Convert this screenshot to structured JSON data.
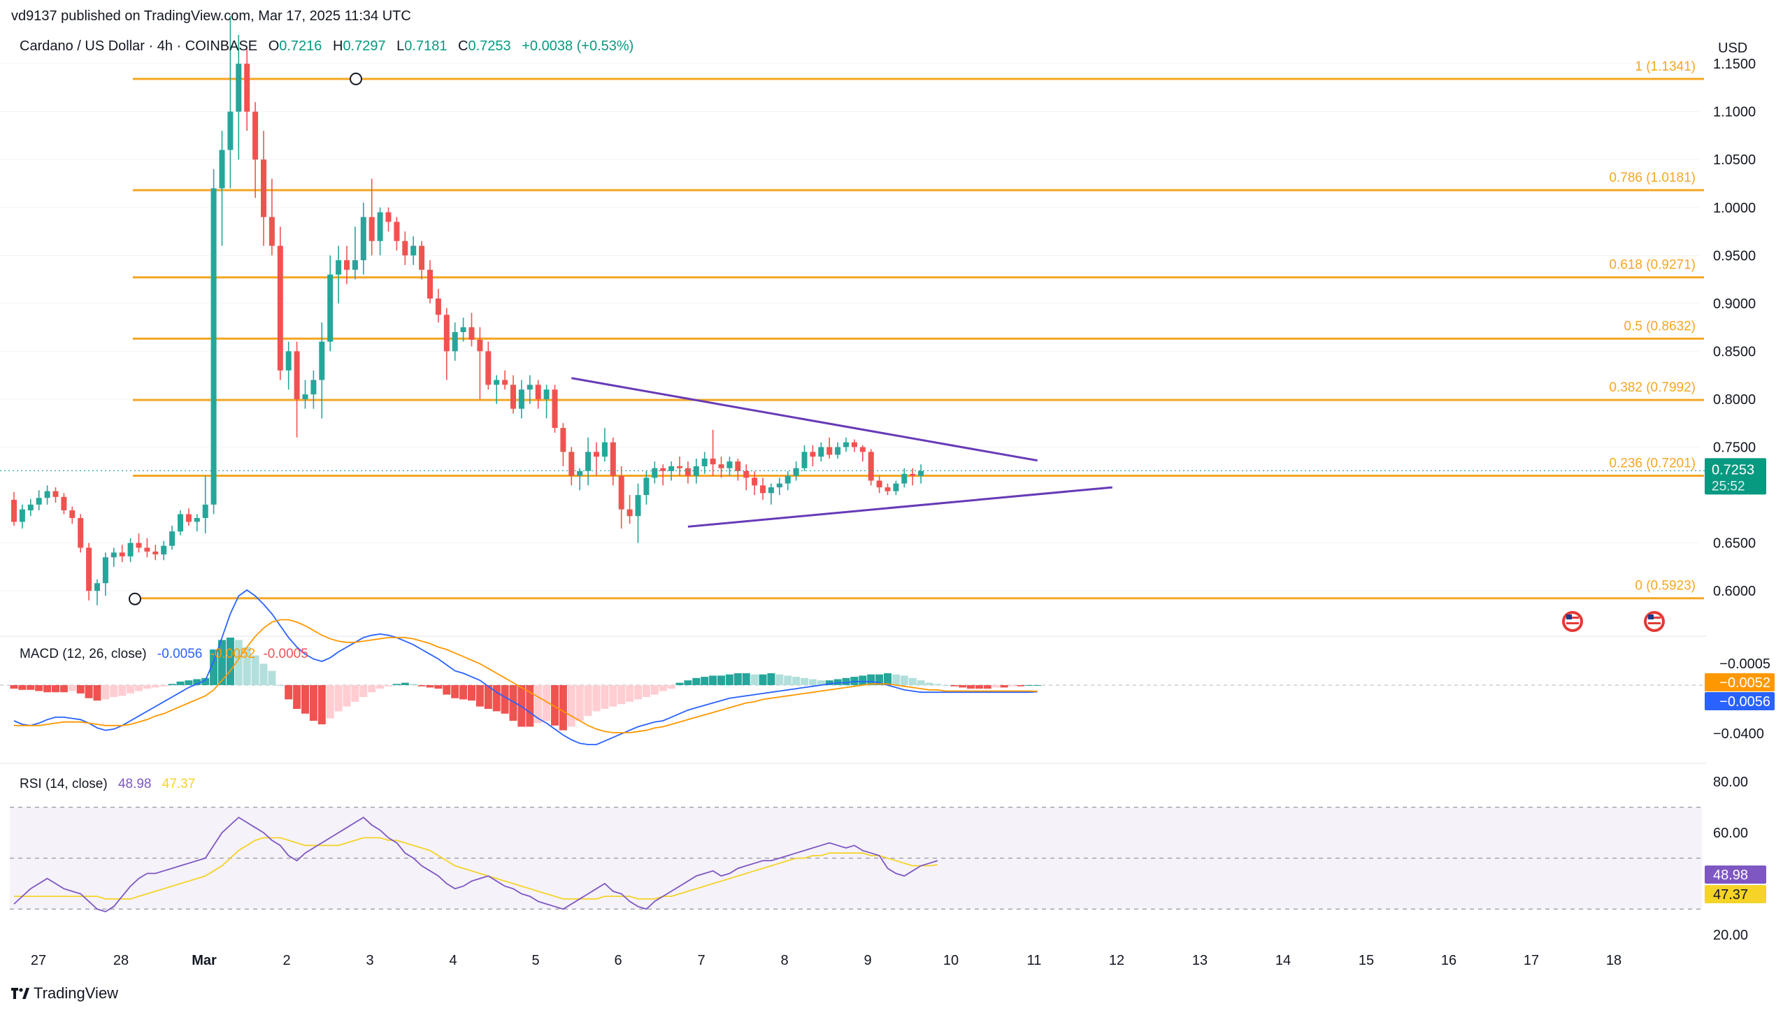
{
  "header": {
    "published": "vd9137 published on TradingView.com, Mar 17, 2025 11:34 UTC"
  },
  "legend": {
    "symbol": "Cardano / US Dollar · 4h · COINBASE",
    "o_label": "O",
    "o": "0.7216",
    "h_label": "H",
    "h": "0.7297",
    "l_label": "L",
    "l": "0.7181",
    "c_label": "C",
    "c": "0.7253",
    "change": "+0.0038 (+0.53%)"
  },
  "currency": "USD",
  "branding": "TradingView",
  "colors": {
    "up": "#26a69a",
    "down": "#ef5350",
    "fib": "#f5a623",
    "trend": "#673ab7",
    "macd": "#2962ff",
    "signal": "#ff9800",
    "rsi": "#7e57c2",
    "rsi_ma": "#f5d327",
    "hist_up": "#26a69a",
    "hist_up_weak": "#b2dfdb",
    "hist_dn": "#ef5350",
    "hist_dn_weak": "#ffcdd2"
  },
  "icons": {
    "brand": "tradingview-logo-icon",
    "events": "us-flag-event-icon"
  },
  "price_label": {
    "value": "0.7253",
    "countdown": "25:52"
  },
  "macd": {
    "title": "MACD (12, 26, close)",
    "val_macd": "-0.0056",
    "val_signal": "-0.0052",
    "val_hist": "-0.0005",
    "label_hist": "−0.0005",
    "label_signal": "−0.0052",
    "label_macd": "−0.0056",
    "ticks": [
      "−0.0400"
    ]
  },
  "rsi": {
    "title": "RSI (14, close)",
    "value": "48.98",
    "ma_value": "47.37",
    "ticks": [
      "80.00",
      "60.00",
      "20.00"
    ],
    "bands": [
      70,
      50,
      30
    ]
  },
  "chart_data": {
    "type": "candlestick",
    "title": "Cardano / US Dollar · 4h · COINBASE",
    "ylabel": "USD",
    "ylim": [
      0.56,
      1.18
    ],
    "y_ticks": [
      "1.1500",
      "1.1000",
      "1.0500",
      "1.0000",
      "0.9500",
      "0.9000",
      "0.8500",
      "0.8000",
      "0.7500",
      "0.6500",
      "0.6000"
    ],
    "x_ticks": [
      "27",
      "28",
      "Mar",
      "2",
      "3",
      "4",
      "5",
      "6",
      "7",
      "8",
      "9",
      "10",
      "11",
      "12",
      "13",
      "14",
      "15",
      "16",
      "17",
      "18"
    ],
    "candles_ohlc": [
      [
        0.695,
        0.703,
        0.668,
        0.672
      ],
      [
        0.672,
        0.69,
        0.665,
        0.685
      ],
      [
        0.684,
        0.696,
        0.678,
        0.69
      ],
      [
        0.69,
        0.705,
        0.684,
        0.697
      ],
      [
        0.697,
        0.71,
        0.69,
        0.704
      ],
      [
        0.704,
        0.708,
        0.692,
        0.698
      ],
      [
        0.698,
        0.702,
        0.68,
        0.684
      ],
      [
        0.684,
        0.688,
        0.67,
        0.676
      ],
      [
        0.676,
        0.68,
        0.64,
        0.645
      ],
      [
        0.645,
        0.65,
        0.59,
        0.6
      ],
      [
        0.6,
        0.612,
        0.585,
        0.608
      ],
      [
        0.608,
        0.64,
        0.595,
        0.635
      ],
      [
        0.635,
        0.645,
        0.625,
        0.64
      ],
      [
        0.64,
        0.648,
        0.63,
        0.636
      ],
      [
        0.636,
        0.655,
        0.63,
        0.65
      ],
      [
        0.65,
        0.66,
        0.64,
        0.645
      ],
      [
        0.645,
        0.655,
        0.635,
        0.641
      ],
      [
        0.641,
        0.648,
        0.632,
        0.638
      ],
      [
        0.638,
        0.652,
        0.632,
        0.647
      ],
      [
        0.647,
        0.668,
        0.643,
        0.662
      ],
      [
        0.662,
        0.684,
        0.658,
        0.68
      ],
      [
        0.68,
        0.686,
        0.668,
        0.672
      ],
      [
        0.672,
        0.68,
        0.662,
        0.676
      ],
      [
        0.676,
        0.72,
        0.66,
        0.69
      ],
      [
        0.69,
        1.04,
        0.68,
        1.02
      ],
      [
        1.02,
        1.08,
        0.96,
        1.06
      ],
      [
        1.06,
        1.2,
        1.02,
        1.1
      ],
      [
        1.1,
        1.18,
        1.05,
        1.15
      ],
      [
        1.15,
        1.165,
        1.08,
        1.1
      ],
      [
        1.1,
        1.11,
        1.01,
        1.05
      ],
      [
        1.05,
        1.08,
        0.96,
        0.99
      ],
      [
        0.99,
        1.03,
        0.95,
        0.96
      ],
      [
        0.96,
        0.98,
        0.82,
        0.83
      ],
      [
        0.83,
        0.86,
        0.81,
        0.85
      ],
      [
        0.85,
        0.86,
        0.76,
        0.8
      ],
      [
        0.8,
        0.82,
        0.79,
        0.805
      ],
      [
        0.805,
        0.83,
        0.79,
        0.82
      ],
      [
        0.82,
        0.88,
        0.78,
        0.86
      ],
      [
        0.86,
        0.95,
        0.85,
        0.93
      ],
      [
        0.93,
        0.96,
        0.9,
        0.945
      ],
      [
        0.945,
        0.96,
        0.92,
        0.935
      ],
      [
        0.935,
        0.98,
        0.925,
        0.945
      ],
      [
        0.945,
        1.005,
        0.93,
        0.99
      ],
      [
        0.99,
        1.03,
        0.95,
        0.965
      ],
      [
        0.965,
        1.0,
        0.95,
        0.995
      ],
      [
        0.995,
        1.0,
        0.975,
        0.985
      ],
      [
        0.985,
        0.99,
        0.955,
        0.965
      ],
      [
        0.965,
        0.975,
        0.94,
        0.95
      ],
      [
        0.95,
        0.97,
        0.94,
        0.96
      ],
      [
        0.96,
        0.965,
        0.925,
        0.935
      ],
      [
        0.935,
        0.945,
        0.9,
        0.905
      ],
      [
        0.905,
        0.915,
        0.88,
        0.888
      ],
      [
        0.888,
        0.895,
        0.82,
        0.85
      ],
      [
        0.85,
        0.88,
        0.84,
        0.87
      ],
      [
        0.87,
        0.885,
        0.86,
        0.875
      ],
      [
        0.875,
        0.89,
        0.855,
        0.862
      ],
      [
        0.862,
        0.875,
        0.8,
        0.85
      ],
      [
        0.85,
        0.86,
        0.81,
        0.815
      ],
      [
        0.815,
        0.825,
        0.795,
        0.82
      ],
      [
        0.82,
        0.83,
        0.81,
        0.815
      ],
      [
        0.815,
        0.825,
        0.785,
        0.79
      ],
      [
        0.79,
        0.82,
        0.78,
        0.81
      ],
      [
        0.81,
        0.825,
        0.795,
        0.815
      ],
      [
        0.815,
        0.82,
        0.79,
        0.8
      ],
      [
        0.8,
        0.815,
        0.78,
        0.81
      ],
      [
        0.81,
        0.815,
        0.765,
        0.77
      ],
      [
        0.77,
        0.775,
        0.73,
        0.745
      ],
      [
        0.745,
        0.75,
        0.71,
        0.72
      ],
      [
        0.72,
        0.728,
        0.705,
        0.725
      ],
      [
        0.725,
        0.76,
        0.71,
        0.745
      ],
      [
        0.745,
        0.755,
        0.72,
        0.74
      ],
      [
        0.74,
        0.77,
        0.735,
        0.755
      ],
      [
        0.755,
        0.76,
        0.71,
        0.72
      ],
      [
        0.72,
        0.73,
        0.665,
        0.685
      ],
      [
        0.685,
        0.7,
        0.67,
        0.678
      ],
      [
        0.678,
        0.712,
        0.65,
        0.7
      ],
      [
        0.7,
        0.725,
        0.69,
        0.718
      ],
      [
        0.718,
        0.735,
        0.712,
        0.728
      ],
      [
        0.728,
        0.732,
        0.71,
        0.725
      ],
      [
        0.725,
        0.735,
        0.715,
        0.73
      ],
      [
        0.73,
        0.74,
        0.72,
        0.728
      ],
      [
        0.728,
        0.735,
        0.712,
        0.72
      ],
      [
        0.72,
        0.738,
        0.712,
        0.73
      ],
      [
        0.73,
        0.745,
        0.722,
        0.738
      ],
      [
        0.738,
        0.768,
        0.72,
        0.732
      ],
      [
        0.732,
        0.74,
        0.718,
        0.728
      ],
      [
        0.728,
        0.74,
        0.72,
        0.735
      ],
      [
        0.735,
        0.738,
        0.715,
        0.725
      ],
      [
        0.725,
        0.732,
        0.705,
        0.718
      ],
      [
        0.718,
        0.725,
        0.7,
        0.71
      ],
      [
        0.71,
        0.718,
        0.695,
        0.702
      ],
      [
        0.702,
        0.712,
        0.69,
        0.708
      ],
      [
        0.708,
        0.718,
        0.7,
        0.712
      ],
      [
        0.712,
        0.725,
        0.705,
        0.72
      ],
      [
        0.72,
        0.735,
        0.715,
        0.728
      ],
      [
        0.728,
        0.752,
        0.725,
        0.745
      ],
      [
        0.745,
        0.752,
        0.73,
        0.74
      ],
      [
        0.74,
        0.755,
        0.735,
        0.75
      ],
      [
        0.75,
        0.76,
        0.738,
        0.742
      ],
      [
        0.742,
        0.755,
        0.738,
        0.75
      ],
      [
        0.75,
        0.76,
        0.745,
        0.755
      ],
      [
        0.755,
        0.758,
        0.745,
        0.75
      ],
      [
        0.75,
        0.752,
        0.735,
        0.745
      ],
      [
        0.745,
        0.748,
        0.71,
        0.715
      ],
      [
        0.715,
        0.72,
        0.702,
        0.708
      ],
      [
        0.708,
        0.712,
        0.7,
        0.704
      ],
      [
        0.704,
        0.715,
        0.7,
        0.712
      ],
      [
        0.712,
        0.728,
        0.708,
        0.722
      ],
      [
        0.722,
        0.728,
        0.71,
        0.72
      ],
      [
        0.72,
        0.732,
        0.712,
        0.725
      ]
    ],
    "fibonacci_levels": [
      {
        "label": "1 (1.1341)",
        "value": 1.1341
      },
      {
        "label": "0.786 (1.0181)",
        "value": 1.0181
      },
      {
        "label": "0.618 (0.9271)",
        "value": 0.9271
      },
      {
        "label": "0.5 (0.8632)",
        "value": 0.8632
      },
      {
        "label": "0.382 (0.7992)",
        "value": 0.7992
      },
      {
        "label": "0.236 (0.7201)",
        "value": 0.7201
      },
      {
        "label": "0 (0.5923)",
        "value": 0.5923
      }
    ],
    "trendlines": [
      {
        "name": "upper",
        "from": {
          "bar": 67,
          "price": 0.822
        },
        "to": {
          "bar": 123,
          "price": 0.736
        }
      },
      {
        "name": "lower",
        "from": {
          "bar": 81,
          "price": 0.667
        },
        "to": {
          "bar": 132,
          "price": 0.708
        }
      }
    ],
    "last_price": 0.7253,
    "macd_ylim": [
      -0.05,
      0.04
    ],
    "macd_hist": [
      -0.003,
      -0.004,
      -0.004,
      -0.005,
      -0.006,
      -0.006,
      -0.006,
      -0.005,
      -0.007,
      -0.011,
      -0.013,
      -0.012,
      -0.01,
      -0.009,
      -0.007,
      -0.005,
      -0.003,
      -0.002,
      -0.001,
      0.001,
      0.003,
      0.004,
      0.005,
      0.006,
      0.03,
      0.038,
      0.04,
      0.038,
      0.032,
      0.025,
      0.018,
      0.012,
      0.0,
      -0.012,
      -0.02,
      -0.024,
      -0.03,
      -0.033,
      -0.028,
      -0.022,
      -0.018,
      -0.014,
      -0.01,
      -0.006,
      -0.003,
      -0.001,
      0.001,
      0.002,
      0.001,
      -0.001,
      -0.002,
      -0.003,
      -0.008,
      -0.011,
      -0.012,
      -0.013,
      -0.018,
      -0.02,
      -0.022,
      -0.024,
      -0.03,
      -0.035,
      -0.035,
      -0.032,
      -0.03,
      -0.034,
      -0.038,
      -0.035,
      -0.03,
      -0.026,
      -0.022,
      -0.02,
      -0.018,
      -0.016,
      -0.014,
      -0.012,
      -0.01,
      -0.008,
      -0.005,
      -0.003,
      0.002,
      0.004,
      0.006,
      0.007,
      0.008,
      0.008,
      0.009,
      0.01,
      0.01,
      0.009,
      0.009,
      0.01,
      0.009,
      0.008,
      0.007,
      0.006,
      0.005,
      0.004,
      0.004,
      0.005,
      0.006,
      0.007,
      0.008,
      0.009,
      0.009,
      0.01,
      0.009,
      0.008,
      0.006,
      0.004,
      0.002,
      0.001,
      0.0,
      -0.001,
      -0.002,
      -0.003,
      -0.003,
      -0.003,
      -0.002,
      -0.002,
      -0.001,
      -0.001,
      0.0,
      0.0
    ],
    "macd_line": [
      -0.03,
      -0.033,
      -0.034,
      -0.032,
      -0.029,
      -0.027,
      -0.027,
      -0.028,
      -0.029,
      -0.032,
      -0.036,
      -0.038,
      -0.037,
      -0.034,
      -0.03,
      -0.026,
      -0.022,
      -0.018,
      -0.014,
      -0.01,
      -0.006,
      -0.002,
      0.001,
      0.004,
      0.02,
      0.04,
      0.06,
      0.075,
      0.08,
      0.075,
      0.068,
      0.06,
      0.05,
      0.04,
      0.032,
      0.026,
      0.022,
      0.02,
      0.023,
      0.028,
      0.032,
      0.036,
      0.04,
      0.042,
      0.043,
      0.042,
      0.04,
      0.037,
      0.034,
      0.03,
      0.026,
      0.022,
      0.017,
      0.012,
      0.01,
      0.007,
      0.004,
      -0.001,
      -0.006,
      -0.01,
      -0.014,
      -0.018,
      -0.023,
      -0.028,
      -0.032,
      -0.037,
      -0.042,
      -0.046,
      -0.049,
      -0.05,
      -0.05,
      -0.047,
      -0.044,
      -0.041,
      -0.038,
      -0.035,
      -0.033,
      -0.031,
      -0.03,
      -0.027,
      -0.024,
      -0.021,
      -0.019,
      -0.017,
      -0.015,
      -0.013,
      -0.011,
      -0.01,
      -0.009,
      -0.008,
      -0.007,
      -0.006,
      -0.005,
      -0.004,
      -0.003,
      -0.002,
      -0.001,
      0.0,
      0.001,
      0.002,
      0.002,
      0.003,
      0.003,
      0.003,
      0.002,
      0.0,
      -0.002,
      -0.004,
      -0.005,
      -0.006,
      -0.006,
      -0.006,
      -0.006,
      -0.006,
      -0.006,
      -0.006,
      -0.006,
      -0.006,
      -0.006,
      -0.006,
      -0.006,
      -0.006,
      -0.006,
      -0.0056
    ],
    "signal_line": [
      -0.034,
      -0.034,
      -0.034,
      -0.034,
      -0.033,
      -0.032,
      -0.031,
      -0.031,
      -0.031,
      -0.032,
      -0.033,
      -0.034,
      -0.034,
      -0.034,
      -0.033,
      -0.031,
      -0.029,
      -0.026,
      -0.024,
      -0.021,
      -0.018,
      -0.015,
      -0.012,
      -0.009,
      -0.004,
      0.004,
      0.012,
      0.022,
      0.032,
      0.041,
      0.048,
      0.053,
      0.055,
      0.055,
      0.053,
      0.05,
      0.046,
      0.042,
      0.039,
      0.037,
      0.036,
      0.036,
      0.037,
      0.038,
      0.039,
      0.04,
      0.04,
      0.04,
      0.039,
      0.037,
      0.035,
      0.032,
      0.03,
      0.027,
      0.024,
      0.021,
      0.018,
      0.014,
      0.01,
      0.006,
      0.002,
      -0.002,
      -0.006,
      -0.01,
      -0.014,
      -0.018,
      -0.022,
      -0.026,
      -0.03,
      -0.034,
      -0.037,
      -0.039,
      -0.04,
      -0.04,
      -0.04,
      -0.039,
      -0.038,
      -0.036,
      -0.035,
      -0.033,
      -0.031,
      -0.029,
      -0.027,
      -0.025,
      -0.023,
      -0.021,
      -0.019,
      -0.017,
      -0.015,
      -0.014,
      -0.012,
      -0.011,
      -0.01,
      -0.009,
      -0.008,
      -0.007,
      -0.006,
      -0.005,
      -0.004,
      -0.003,
      -0.002,
      -0.001,
      0.0,
      0.001,
      0.001,
      0.001,
      0.0,
      -0.001,
      -0.002,
      -0.003,
      -0.004,
      -0.004,
      -0.005,
      -0.005,
      -0.005,
      -0.005,
      -0.005,
      -0.005,
      -0.005,
      -0.005,
      -0.005,
      -0.005,
      -0.005,
      -0.0052
    ],
    "rsi_ylim": [
      15,
      85
    ],
    "rsi_line": [
      32,
      35,
      38,
      40,
      42,
      40,
      38,
      37,
      36,
      33,
      30,
      29,
      31,
      35,
      39,
      42,
      44,
      44,
      45,
      46,
      47,
      48,
      49,
      50,
      55,
      60,
      63,
      66,
      64,
      62,
      60,
      57,
      55,
      51,
      49,
      52,
      54,
      56,
      58,
      60,
      62,
      64,
      66,
      63,
      61,
      58,
      56,
      52,
      50,
      47,
      45,
      43,
      40,
      38,
      39,
      41,
      42,
      43,
      41,
      39,
      38,
      36,
      35,
      33,
      32,
      31,
      30,
      32,
      34,
      36,
      38,
      40,
      37,
      36,
      33,
      31,
      30,
      33,
      35,
      37,
      39,
      41,
      43,
      44,
      45,
      43,
      44,
      46,
      47,
      48,
      49,
      49,
      50,
      51,
      52,
      53,
      54,
      55,
      56,
      55,
      54,
      55,
      53,
      52,
      51,
      46,
      44,
      43,
      45,
      47,
      48,
      49
    ],
    "rsi_ma_line": [
      35,
      35,
      35,
      35,
      35,
      35,
      35,
      35,
      35,
      35,
      35,
      34,
      34,
      34,
      34,
      35,
      36,
      37,
      38,
      39,
      40,
      41,
      42,
      43,
      45,
      47,
      50,
      53,
      55,
      57,
      58,
      58,
      58,
      57,
      56,
      55,
      55,
      55,
      55,
      55,
      56,
      57,
      58,
      58,
      58,
      57,
      57,
      56,
      55,
      54,
      53,
      51,
      49,
      47,
      46,
      45,
      44,
      43,
      42,
      41,
      40,
      39,
      38,
      37,
      36,
      35,
      34,
      34,
      34,
      34,
      34,
      35,
      35,
      35,
      35,
      34,
      34,
      34,
      35,
      35,
      36,
      37,
      38,
      39,
      40,
      41,
      42,
      43,
      44,
      45,
      46,
      47,
      48,
      49,
      50,
      50,
      51,
      51,
      52,
      52,
      52,
      52,
      52,
      51,
      51,
      50,
      49,
      48,
      47,
      47,
      47,
      47.37
    ]
  }
}
